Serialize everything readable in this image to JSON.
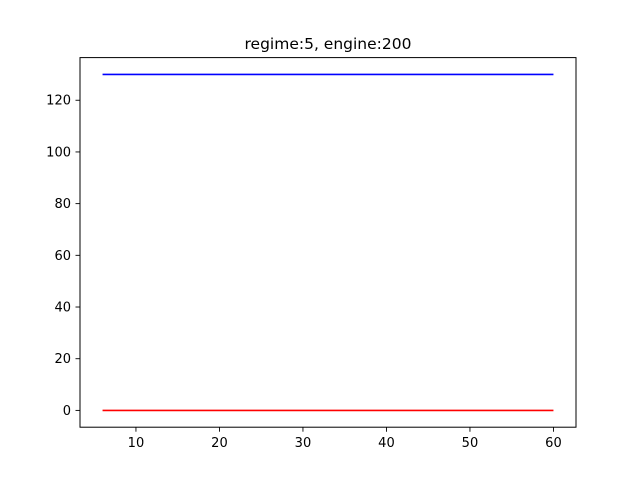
{
  "chart_data": {
    "type": "line",
    "title": "regime:5, engine:200",
    "xlabel": "",
    "ylabel": "",
    "xlim": [
      3.3,
      62.7
    ],
    "ylim": [
      -6.5,
      136.5
    ],
    "x_ticks": [
      10,
      20,
      30,
      40,
      50,
      60
    ],
    "y_ticks": [
      0,
      20,
      40,
      60,
      80,
      100,
      120
    ],
    "grid": false,
    "legend": "none",
    "series": [
      {
        "color": "#0000ff",
        "x": [
          6,
          60
        ],
        "y": [
          130,
          130
        ]
      },
      {
        "color": "#ff0000",
        "x": [
          6,
          60
        ],
        "y": [
          0,
          0
        ]
      }
    ]
  }
}
